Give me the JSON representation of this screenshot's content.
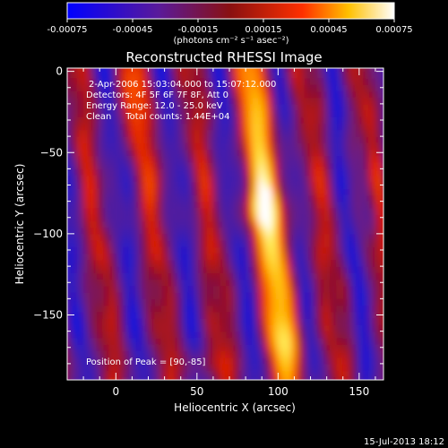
{
  "colorbar": {
    "ticks": [
      "-0.00075",
      "-0.00045",
      "-0.00015",
      "0.00015",
      "0.00045",
      "0.00075"
    ],
    "unit_label": "(photons cm⁻² s⁻¹ asec⁻²)",
    "min": -0.00075,
    "max": 0.00075
  },
  "chart_data": {
    "type": "heatmap",
    "title": "Reconstructed RHESSI Image",
    "xlabel": "Heliocentric X (arcsec)",
    "ylabel": "Heliocentric Y (arcsec)",
    "xlim": [
      -30,
      165
    ],
    "ylim": [
      -190,
      2
    ],
    "x_ticks": [
      0,
      50,
      100,
      150
    ],
    "y_ticks": [
      0,
      -50,
      -100,
      -150
    ],
    "x_tick_labels": [
      "0",
      "50",
      "100",
      "150"
    ],
    "y_tick_labels": [
      "0",
      "−50",
      "−100",
      "−150"
    ],
    "peak": {
      "x": 90,
      "y": -85
    },
    "annotations": [
      "2-Apr-2006 15:03:04.000 to 15:07:12.000",
      "Detectors: 4F 5F 6F 7F 8F, Att 0",
      "Energy Range: 12.0 - 25.0 keV",
      "Clean     Total counts: 1.44E+04"
    ],
    "peak_label": "Position of Peak = [90,-85]",
    "colormap": "blue-purple-red-yellow-white",
    "grid": false
  },
  "timestamp": "15-Jul-2013 18:12"
}
